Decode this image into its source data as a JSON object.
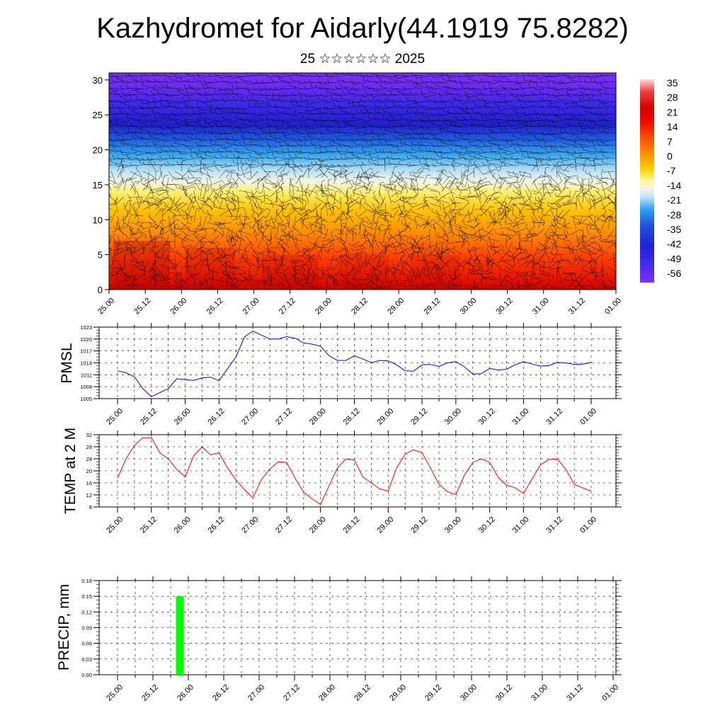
{
  "title": "Kazhydromet for Aidarly(44.1919 75.8282)",
  "subtitle": "25 ☆☆☆☆☆☆ 2025",
  "x_tick_labels": [
    "25.00",
    "25.12",
    "26.00",
    "26.12",
    "27.00",
    "27.12",
    "28.00",
    "28.12",
    "29.00",
    "29.12",
    "30.00",
    "30.12",
    "31.00",
    "31.12",
    "01.00"
  ],
  "chart_data": [
    {
      "type": "heatmap",
      "name": "temperature cross-section with wind barbs",
      "xlabel": "",
      "ylabel": "",
      "yticks": [
        0,
        5,
        10,
        15,
        20,
        25,
        30
      ],
      "ylim": [
        0,
        31
      ],
      "colorbar_labels": [
        "35",
        "28",
        "21",
        "14",
        "7",
        "0",
        "-7",
        "-14",
        "-21",
        "-28",
        "-35",
        "-42",
        "-49",
        "-56"
      ],
      "colorbar_range": [
        -56,
        35
      ]
    },
    {
      "type": "line",
      "ylabel": "PMSL",
      "yticks": [
        1005,
        1008,
        1011,
        1014,
        1017,
        1020,
        1023
      ],
      "ylim": [
        1005,
        1023
      ],
      "color": "#0000ff",
      "x_hours": [
        0,
        3,
        6,
        9,
        12,
        15,
        18,
        21,
        24,
        27,
        30,
        33,
        36,
        39,
        42,
        45,
        48,
        51,
        54,
        57,
        60,
        63,
        66,
        69,
        72,
        75,
        78,
        81,
        84,
        87,
        90,
        93,
        96,
        99,
        102,
        105,
        108,
        111,
        114,
        117,
        120,
        123,
        126,
        129,
        132,
        135,
        138,
        141,
        144,
        147,
        150,
        153,
        156,
        159,
        162,
        165,
        168
      ],
      "values": [
        1012,
        1011.5,
        1010.5,
        1007.5,
        1005.5,
        1006.5,
        1007.5,
        1010,
        1009.8,
        1009.6,
        1010.2,
        1010.4,
        1009.5,
        1012.5,
        1015.5,
        1020.5,
        1022,
        1021,
        1020,
        1020,
        1020.6,
        1020.2,
        1019,
        1018.7,
        1018.2,
        1015.8,
        1014.6,
        1014.6,
        1015.8,
        1015,
        1014,
        1014.6,
        1014.5,
        1013.5,
        1012,
        1011.9,
        1013.5,
        1013.6,
        1013.1,
        1014,
        1014.3,
        1013,
        1011.2,
        1011.3,
        1012.6,
        1012.2,
        1012.4,
        1013.5,
        1014.3,
        1013.7,
        1013.2,
        1013.3,
        1014.1,
        1014,
        1013.6,
        1013.7,
        1014.1
      ]
    },
    {
      "type": "line",
      "ylabel": "TEMP at 2 M",
      "yticks": [
        8,
        12,
        16,
        20,
        24,
        28,
        32
      ],
      "ylim": [
        8,
        32
      ],
      "color": "#ff0000",
      "x_hours": [
        0,
        3,
        6,
        9,
        12,
        15,
        18,
        21,
        24,
        27,
        30,
        33,
        36,
        39,
        42,
        45,
        48,
        51,
        54,
        57,
        60,
        63,
        66,
        69,
        72,
        75,
        78,
        81,
        84,
        87,
        90,
        93,
        96,
        99,
        102,
        105,
        108,
        111,
        114,
        117,
        120,
        123,
        126,
        129,
        132,
        135,
        138,
        141,
        144,
        147,
        150,
        153,
        156,
        159,
        162,
        165,
        168
      ],
      "values": [
        17.5,
        24,
        28.5,
        31,
        31,
        26,
        24,
        20.5,
        18,
        25,
        28,
        25.3,
        26,
        21,
        17,
        13.8,
        11,
        17,
        20.6,
        23,
        22.8,
        17.5,
        12.9,
        10.7,
        8.8,
        15,
        21,
        24,
        23.6,
        18,
        16,
        14,
        13.3,
        21,
        25.5,
        27,
        26,
        21,
        15.5,
        13.1,
        12.1,
        18.5,
        22.8,
        24,
        22.8,
        17.9,
        15.2,
        14.4,
        12.5,
        17.3,
        22,
        23.8,
        23.9,
        20.5,
        15.5,
        14.3,
        13.3
      ]
    },
    {
      "type": "bar",
      "ylabel": "PRECIP, mm",
      "yticks": [
        "0.00",
        "0.03",
        "0.06",
        "0.09",
        "0.12",
        "0.15",
        "0.18"
      ],
      "ylim": [
        0,
        0.18
      ],
      "color": "#00ff00",
      "bars": [
        {
          "x_hours": 21,
          "value": 0.15
        }
      ]
    }
  ]
}
